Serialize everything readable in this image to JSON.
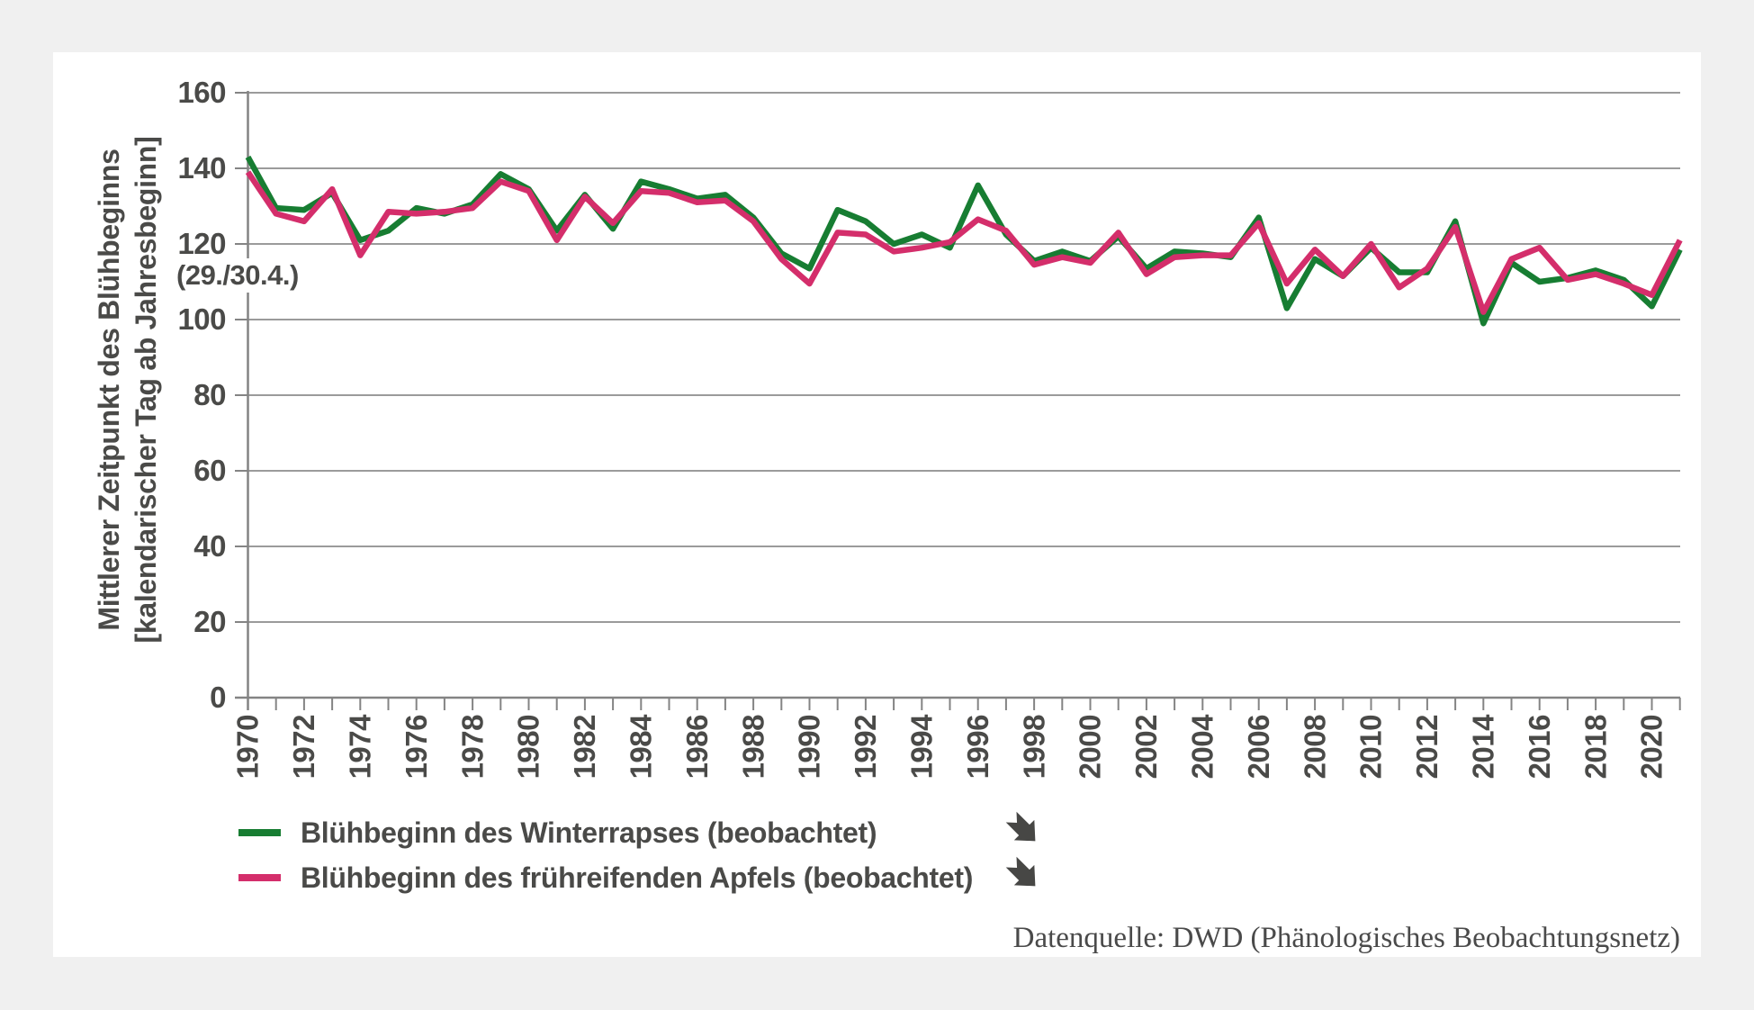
{
  "colors": {
    "page_bg": "#f0f0f0",
    "card_bg": "#ffffff",
    "grid": "#9b9b9b",
    "axis": "#848484",
    "text": "#4a4a48",
    "source_text": "#4a4a4a",
    "icon": "#474745",
    "series_green": "#177d32",
    "series_pink": "#d42e6b"
  },
  "chart_data": {
    "type": "line",
    "ylabel_line1": "Mittlerer Zeitpunkt des  Blühbeginns",
    "ylabel_line2": "[kalendarischer Tag ab Jahresbeginn]",
    "y_axis_annotation": "(29./30.4.)",
    "ylim": [
      0,
      160
    ],
    "y_ticks": [
      0,
      20,
      40,
      60,
      80,
      100,
      120,
      140,
      160
    ],
    "grid": true,
    "legend_position": "bottom-left",
    "years": [
      1970,
      1971,
      1972,
      1973,
      1974,
      1975,
      1976,
      1977,
      1978,
      1979,
      1980,
      1981,
      1982,
      1983,
      1984,
      1985,
      1986,
      1987,
      1988,
      1989,
      1990,
      1991,
      1992,
      1993,
      1994,
      1995,
      1996,
      1997,
      1998,
      1999,
      2000,
      2001,
      2002,
      2003,
      2004,
      2005,
      2006,
      2007,
      2008,
      2009,
      2010,
      2011,
      2012,
      2013,
      2014,
      2015,
      2016,
      2017,
      2018,
      2019,
      2020,
      2021
    ],
    "x_tick_labels": [
      "1970",
      "1972",
      "1974",
      "1976",
      "1978",
      "1980",
      "1982",
      "1984",
      "1986",
      "1988",
      "1990",
      "1992",
      "1994",
      "1996",
      "1998",
      "2000",
      "2002",
      "2004",
      "2006",
      "2008",
      "2010",
      "2012",
      "2014",
      "2016",
      "2018",
      "2020"
    ],
    "series": [
      {
        "name": "Blühbeginn des Winterrapses (beobachtet)",
        "color": "#177d32",
        "trend_icon": "arrow-down-right",
        "values": [
          143,
          129.5,
          129,
          133.5,
          121,
          123.5,
          129.5,
          128,
          130.5,
          138.5,
          134.5,
          123.5,
          133,
          124,
          136.5,
          134.5,
          132,
          133,
          127,
          117.5,
          113.5,
          129,
          126,
          120,
          122.5,
          119,
          135.5,
          122.5,
          115.5,
          118,
          115.5,
          122,
          113.5,
          118,
          117.5,
          116.5,
          127,
          103,
          116,
          111.5,
          119,
          112.5,
          112.5,
          126,
          99,
          115,
          110,
          111,
          113,
          110.5,
          103.5,
          118.5
        ]
      },
      {
        "name": "Blühbeginn des frühreifenden Apfels (beobachtet)",
        "color": "#d42e6b",
        "trend_icon": "arrow-down-right",
        "values": [
          139,
          128,
          126,
          134.5,
          117,
          128.5,
          128,
          128.5,
          129.5,
          136.5,
          134,
          121,
          132.5,
          125.5,
          134,
          133.5,
          131,
          131.5,
          126,
          116,
          109.5,
          123,
          122.5,
          118,
          119,
          120.5,
          126.5,
          123.5,
          114.5,
          116.5,
          115,
          123,
          112,
          116.5,
          117,
          117,
          125.5,
          109.5,
          118.5,
          111.5,
          120,
          108.5,
          113.5,
          124.5,
          102,
          116,
          119,
          110.5,
          112,
          109.5,
          106.5,
          121
        ]
      }
    ]
  },
  "source": {
    "text": "Datenquelle: DWD (Phänologisches Beobachtungsnetz)"
  }
}
